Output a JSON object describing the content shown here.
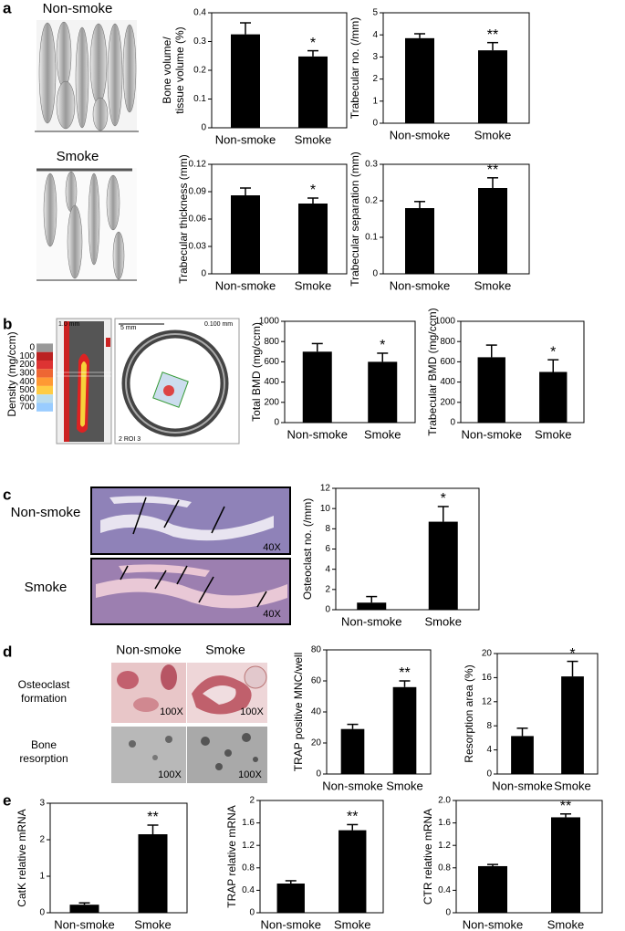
{
  "labels": {
    "panels": [
      "a",
      "b",
      "c",
      "d",
      "e"
    ],
    "a_images": [
      "Non-smoke",
      "Smoke"
    ],
    "b_density_title": "Density (mg/ccm)",
    "b_density_scale": [
      0,
      100,
      200,
      300,
      400,
      500,
      600,
      700
    ],
    "b_image_texts": [
      "1.0 mm",
      "5 mm",
      "0.100 mm",
      "2 ROI 3"
    ],
    "c_rows": [
      "Non-smoke",
      "Smoke"
    ],
    "c_magnification": [
      "40X",
      "40X"
    ],
    "d_columns": [
      "Non-smoke",
      "Smoke"
    ],
    "d_rows": [
      [
        "Osteoclast",
        "formation"
      ],
      [
        "Bone",
        "resorption"
      ]
    ],
    "d_magnification": [
      "100X",
      "100X",
      "100X",
      "100X"
    ]
  },
  "chart_data": [
    {
      "type": "bar",
      "ylabel": [
        "Bone volume/",
        "tissue volume (%)"
      ],
      "categories": [
        "Non-smoke",
        "Smoke"
      ],
      "values": [
        0.325,
        0.248
      ],
      "errors": [
        0.04,
        0.02
      ],
      "annotation": "*",
      "ylim": [
        0,
        0.4
      ],
      "yticks": [
        0,
        0.1,
        0.2,
        0.3,
        0.4
      ]
    },
    {
      "type": "bar",
      "ylabel": [
        "Trabecular no. (/mm)"
      ],
      "categories": [
        "Non-smoke",
        "Smoke"
      ],
      "values": [
        3.85,
        3.3
      ],
      "errors": [
        0.2,
        0.35
      ],
      "annotation": "**",
      "ylim": [
        0,
        5
      ],
      "yticks": [
        0,
        1,
        2,
        3,
        4,
        5
      ]
    },
    {
      "type": "bar",
      "ylabel": [
        "Trabecular thickness (mm)"
      ],
      "categories": [
        "Non-smoke",
        "Smoke"
      ],
      "values": [
        0.086,
        0.077
      ],
      "errors": [
        0.008,
        0.006
      ],
      "annotation": "*",
      "ylim": [
        0,
        0.12
      ],
      "yticks": [
        0,
        0.03,
        0.06,
        0.09,
        0.12
      ]
    },
    {
      "type": "bar",
      "ylabel": [
        "Trabecular separation (mm)"
      ],
      "categories": [
        "Non-smoke",
        "Smoke"
      ],
      "values": [
        0.18,
        0.235
      ],
      "errors": [
        0.018,
        0.028
      ],
      "annotation": "**",
      "ylim": [
        0,
        0.3
      ],
      "yticks": [
        0,
        0.1,
        0.2,
        0.3
      ]
    },
    {
      "type": "bar",
      "ylabel": [
        "Total BMD (mg/ccm)"
      ],
      "categories": [
        "Non-smoke",
        "Smoke"
      ],
      "values": [
        700,
        600
      ],
      "errors": [
        80,
        85
      ],
      "annotation": "*",
      "ylim": [
        0,
        1000
      ],
      "yticks": [
        0,
        200,
        400,
        600,
        800,
        1000
      ]
    },
    {
      "type": "bar",
      "ylabel": [
        "Trabecular BMD (mg/ccm)"
      ],
      "categories": [
        "Non-smoke",
        "Smoke"
      ],
      "values": [
        645,
        500
      ],
      "errors": [
        120,
        120
      ],
      "annotation": "*",
      "ylim": [
        0,
        1000
      ],
      "yticks": [
        0,
        200,
        400,
        600,
        800,
        1000
      ]
    },
    {
      "type": "bar",
      "ylabel": [
        "Osteoclast no. (/mm)"
      ],
      "categories": [
        "Non-smoke",
        "Smoke"
      ],
      "values": [
        0.7,
        8.7
      ],
      "errors": [
        0.6,
        1.5
      ],
      "annotation": "*",
      "ylim": [
        0,
        12
      ],
      "yticks": [
        0,
        2,
        4,
        6,
        8,
        10,
        12
      ]
    },
    {
      "type": "bar",
      "ylabel": [
        "TRAP positive MNC/well"
      ],
      "categories": [
        "Non-smoke",
        "Smoke"
      ],
      "values": [
        29,
        56
      ],
      "errors": [
        3,
        4
      ],
      "annotation": "**",
      "ylim": [
        0,
        80
      ],
      "yticks": [
        0,
        20,
        40,
        60,
        80
      ]
    },
    {
      "type": "bar",
      "ylabel": [
        "Resorption area (%)"
      ],
      "categories": [
        "Non-smoke",
        "Smoke"
      ],
      "values": [
        6.3,
        16.2
      ],
      "errors": [
        1.3,
        2.5
      ],
      "annotation": "*",
      "ylim": [
        0,
        20
      ],
      "yticks": [
        0,
        4,
        8,
        12,
        16,
        20
      ]
    },
    {
      "type": "bar",
      "ylabel": [
        "CatK relative mRNA"
      ],
      "categories": [
        "Non-smoke",
        "Smoke"
      ],
      "values": [
        0.22,
        2.15
      ],
      "errors": [
        0.05,
        0.25
      ],
      "annotation": "**",
      "ylim": [
        0,
        3
      ],
      "yticks": [
        0,
        1,
        2,
        3
      ]
    },
    {
      "type": "bar",
      "ylabel": [
        "TRAP relative mRNA"
      ],
      "categories": [
        "Non-smoke",
        "Smoke"
      ],
      "values": [
        0.52,
        1.47
      ],
      "errors": [
        0.05,
        0.1
      ],
      "annotation": "**",
      "ylim": [
        0,
        2
      ],
      "yticks": [
        0,
        0.4,
        0.8,
        1.2,
        1.6,
        2
      ]
    },
    {
      "type": "bar",
      "ylabel": [
        "CTR relative mRNA"
      ],
      "categories": [
        "Non-smoke",
        "Smoke"
      ],
      "values": [
        0.83,
        1.7
      ],
      "errors": [
        0.03,
        0.06
      ],
      "annotation": "**",
      "ylim": [
        0,
        2
      ],
      "yticks": [
        0,
        0.4,
        0.8,
        1.2,
        1.6,
        {
          "value": 2,
          "label": "2.0"
        }
      ]
    }
  ]
}
